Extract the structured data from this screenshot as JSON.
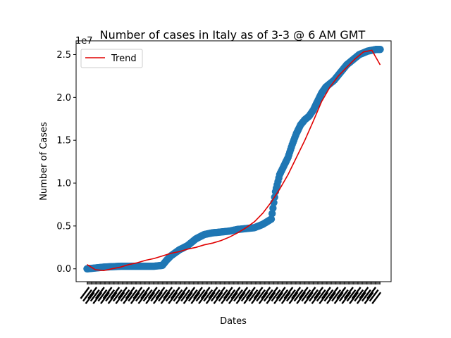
{
  "chart_data": {
    "type": "scatter",
    "title": "Number of cases in Italy as of 3-3 @ 6 AM GMT",
    "xlabel": "Dates",
    "ylabel": "Number of Cases",
    "offset_label": "1e7",
    "y_scale": 10000000,
    "ylim": [
      -0.15,
      2.66
    ],
    "xlim": [
      -13,
      363
    ],
    "yticks": [
      0.0,
      0.5,
      1.0,
      1.5,
      2.0,
      2.5
    ],
    "ytick_labels": [
      "0.0",
      "0.5",
      "1.0",
      "1.5",
      "2.0",
      "2.5"
    ],
    "n_dates": 351,
    "x_tick_labels_legible": false,
    "scatter_color": "#1f77b4",
    "trend_color": "#e00000",
    "legend": {
      "position": "top-left",
      "entries": [
        {
          "label": "Trend",
          "color": "#e00000"
        }
      ]
    },
    "observed": {
      "name": "Cases",
      "x": [
        0,
        10,
        20,
        30,
        40,
        50,
        60,
        70,
        80,
        90,
        95,
        100,
        110,
        120,
        130,
        140,
        150,
        160,
        170,
        180,
        190,
        200,
        210,
        220,
        225,
        230,
        235,
        240,
        245,
        250,
        255,
        260,
        265,
        270,
        275,
        280,
        285,
        290,
        295,
        300,
        305,
        310,
        315,
        320,
        325,
        330,
        335,
        340,
        345,
        350
      ],
      "y": [
        0.0,
        0.01,
        0.02,
        0.025,
        0.03,
        0.03,
        0.03,
        0.03,
        0.03,
        0.04,
        0.1,
        0.15,
        0.22,
        0.27,
        0.35,
        0.4,
        0.42,
        0.43,
        0.44,
        0.46,
        0.47,
        0.48,
        0.52,
        0.58,
        0.9,
        1.1,
        1.2,
        1.3,
        1.45,
        1.58,
        1.68,
        1.74,
        1.78,
        1.85,
        1.95,
        2.05,
        2.12,
        2.16,
        2.2,
        2.26,
        2.32,
        2.38,
        2.42,
        2.46,
        2.5,
        2.52,
        2.54,
        2.55,
        2.56,
        2.56
      ]
    },
    "trend": {
      "name": "Trend",
      "x": [
        0,
        10,
        20,
        30,
        40,
        50,
        60,
        70,
        80,
        90,
        100,
        110,
        120,
        130,
        140,
        150,
        160,
        170,
        180,
        190,
        200,
        210,
        220,
        230,
        240,
        250,
        260,
        270,
        280,
        290,
        300,
        310,
        320,
        330,
        340,
        350
      ],
      "y": [
        0.05,
        -0.01,
        -0.02,
        0.0,
        0.02,
        0.05,
        0.07,
        0.1,
        0.12,
        0.15,
        0.18,
        0.2,
        0.23,
        0.25,
        0.28,
        0.3,
        0.33,
        0.37,
        0.42,
        0.48,
        0.55,
        0.65,
        0.78,
        0.93,
        1.1,
        1.3,
        1.5,
        1.72,
        1.95,
        2.12,
        2.25,
        2.35,
        2.45,
        2.53,
        2.55,
        2.38
      ]
    }
  }
}
